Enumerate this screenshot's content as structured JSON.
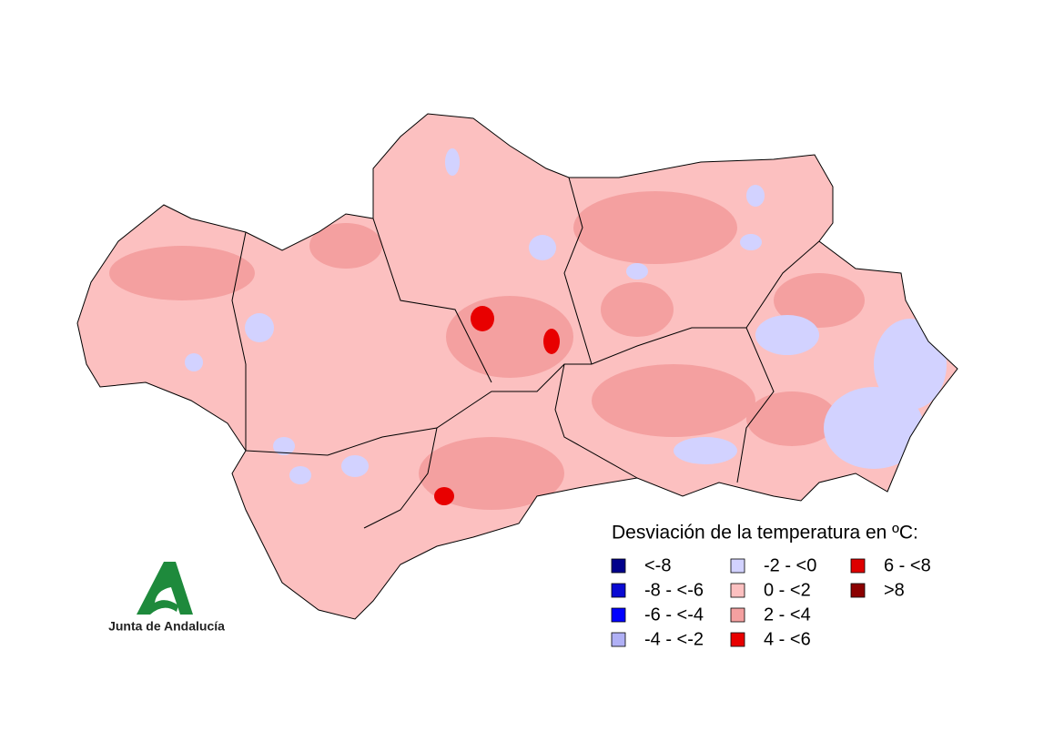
{
  "legend": {
    "title": "Desviación de la temperatura en ºC:",
    "items": [
      {
        "label": "<-8",
        "color": "#00008b"
      },
      {
        "label": "-8 - <-6",
        "color": "#0a0ad2"
      },
      {
        "label": "-6 - <-4",
        "color": "#0000ff"
      },
      {
        "label": "-4 - <-2",
        "color": "#b0b0f5"
      },
      {
        "label": "-2 - <0",
        "color": "#d2d2ff"
      },
      {
        "label": "0 - <2",
        "color": "#fcc0c0"
      },
      {
        "label": "2 - <4",
        "color": "#f4a0a0"
      },
      {
        "label": "4 - <6",
        "color": "#e80000"
      },
      {
        "label": "6 - <8",
        "color": "#de0000"
      },
      {
        "label": ">8",
        "color": "#8b0000"
      }
    ]
  },
  "logo": {
    "text": "Junta de Andalucía"
  }
}
